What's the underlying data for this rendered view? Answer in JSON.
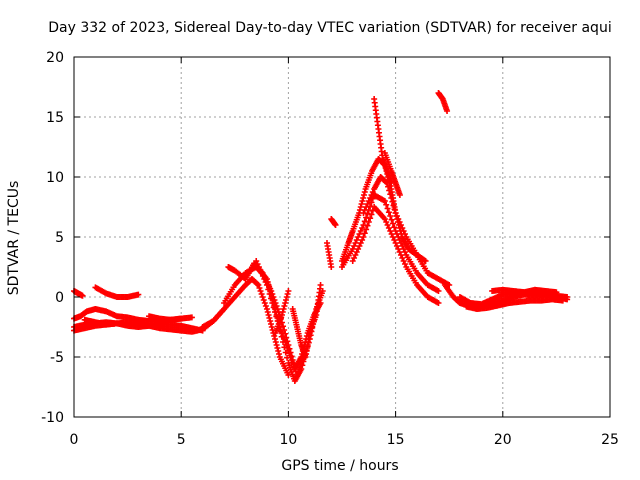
{
  "chart_data": {
    "type": "scatter",
    "title": "Day 332 of 2023, Sidereal Day-to-day VTEC variation (SDTVAR) for receiver aqui",
    "xlabel": "GPS time / hours",
    "ylabel": "SDTVAR / TECUs",
    "xlim": [
      0,
      25
    ],
    "ylim": [
      -10,
      20
    ],
    "xticks": [
      0,
      5,
      10,
      15,
      20,
      25
    ],
    "yticks": [
      -10,
      -5,
      0,
      5,
      10,
      15,
      20
    ],
    "xtick_labels": [
      "0",
      "5",
      "10",
      "15",
      "20",
      "25"
    ],
    "ytick_labels": [
      "-10",
      "-5",
      "0",
      "5",
      "10",
      "15",
      "20"
    ],
    "grid": true,
    "marker": "plus",
    "series": [
      {
        "name": "SDTVAR",
        "color": "#ff0000",
        "tracks": [
          {
            "x": [
              0.0,
              0.5,
              1.0,
              1.5,
              2.0,
              2.5,
              3.0,
              3.5,
              4.0,
              4.5,
              5.0,
              5.5,
              6.0
            ],
            "y": [
              -2.5,
              -2.3,
              -2.2,
              -2.1,
              -2.2,
              -2.4,
              -2.5,
              -2.4,
              -2.3,
              -2.3,
              -2.4,
              -2.6,
              -2.8
            ]
          },
          {
            "x": [
              0.0,
              0.5,
              1.0,
              1.5,
              2.0,
              2.5,
              3.0,
              3.5,
              4.0,
              4.5,
              5.0,
              5.5,
              6.0,
              6.5,
              7.0
            ],
            "y": [
              -2.8,
              -2.6,
              -2.4,
              -2.3,
              -2.2,
              -2.1,
              -2.2,
              -2.4,
              -2.6,
              -2.7,
              -2.8,
              -2.9,
              -2.7,
              -2.0,
              -1.0
            ]
          },
          {
            "x": [
              0.0,
              0.3,
              0.6,
              1.0,
              1.5,
              2.0,
              2.5,
              3.0,
              3.5,
              4.0,
              4.5,
              5.0
            ],
            "y": [
              -1.8,
              -1.6,
              -1.2,
              -1.0,
              -1.2,
              -1.6,
              -1.7,
              -1.9,
              -2.0,
              -2.0,
              -1.9,
              -1.8
            ]
          },
          {
            "x": [
              0.0,
              0.2,
              0.4
            ],
            "y": [
              0.5,
              0.3,
              0.1
            ]
          },
          {
            "x": [
              1.0,
              1.5,
              2.0,
              2.5,
              3.0
            ],
            "y": [
              0.8,
              0.3,
              0.0,
              0.0,
              0.2
            ]
          },
          {
            "x": [
              0.5,
              1.0,
              1.5,
              2.0
            ],
            "y": [
              -1.9,
              -2.1,
              -2.3,
              -2.2
            ]
          },
          {
            "x": [
              3.5,
              4.0,
              4.5,
              5.0,
              5.5
            ],
            "y": [
              -1.6,
              -1.8,
              -1.9,
              -1.8,
              -1.7
            ]
          },
          {
            "x": [
              6.0,
              6.5,
              7.0,
              7.5,
              8.0,
              8.3,
              8.6,
              9.0,
              9.3,
              9.6,
              10.0
            ],
            "y": [
              -2.5,
              -2.0,
              -1.0,
              0.0,
              1.0,
              1.5,
              1.0,
              -1.0,
              -3.0,
              -5.0,
              -6.5
            ]
          },
          {
            "x": [
              7.0,
              7.5,
              8.0,
              8.5,
              9.0,
              9.3,
              9.6,
              10.0,
              10.3,
              10.6,
              10.9,
              11.2,
              11.5
            ],
            "y": [
              -0.5,
              1.0,
              2.0,
              2.5,
              1.5,
              -0.5,
              -2.5,
              -4.5,
              -6.0,
              -5.0,
              -3.0,
              -1.5,
              -0.5
            ]
          },
          {
            "x": [
              7.2,
              7.5,
              8.0,
              8.4,
              8.8,
              9.2,
              9.6,
              10.0,
              10.4,
              10.8
            ],
            "y": [
              2.5,
              2.2,
              1.5,
              2.8,
              2.0,
              0.5,
              -1.5,
              -4.0,
              -6.5,
              -4.5
            ]
          },
          {
            "x": [
              8.5,
              9.0,
              9.5,
              10.0,
              10.3,
              10.6,
              11.0,
              11.3,
              11.6
            ],
            "y": [
              3.0,
              1.0,
              -2.0,
              -5.5,
              -7.0,
              -6.0,
              -3.5,
              -1.0,
              0.5
            ]
          },
          {
            "x": [
              10.2,
              10.4,
              10.6,
              10.8,
              11.0,
              11.3,
              11.5
            ],
            "y": [
              -1.0,
              -2.5,
              -4.0,
              -5.0,
              -3.0,
              -1.5,
              1.0
            ]
          },
          {
            "x": [
              9.4,
              9.7,
              10.0
            ],
            "y": [
              -3.0,
              -1.5,
              0.5
            ]
          },
          {
            "x": [
              12.0,
              12.2
            ],
            "y": [
              6.5,
              6.0
            ]
          },
          {
            "x": [
              11.8,
              12.0
            ],
            "y": [
              4.5,
              2.5
            ]
          },
          {
            "x": [
              12.5,
              12.8,
              13.0,
              13.3,
              13.6,
              13.9,
              14.2,
              14.5,
              14.8,
              15.0,
              15.3,
              15.6,
              16.0,
              16.4
            ],
            "y": [
              3.0,
              4.5,
              5.5,
              7.0,
              9.0,
              10.5,
              11.5,
              11.0,
              9.0,
              7.0,
              5.0,
              4.0,
              3.5,
              3.0
            ]
          },
          {
            "x": [
              12.5,
              13.0,
              13.5,
              14.0,
              14.5,
              15.0,
              15.5,
              16.0,
              16.5,
              17.0
            ],
            "y": [
              2.5,
              4.0,
              6.0,
              8.5,
              8.0,
              5.5,
              3.5,
              2.0,
              1.0,
              0.5
            ]
          },
          {
            "x": [
              13.0,
              13.5,
              14.0,
              14.5,
              15.0,
              15.5,
              16.0,
              16.5,
              17.0
            ],
            "y": [
              3.0,
              5.0,
              7.5,
              6.5,
              4.5,
              2.5,
              1.0,
              0.0,
              -0.5
            ]
          },
          {
            "x": [
              13.5,
              14.0,
              14.3,
              14.6,
              15.0,
              15.5,
              16.0,
              16.5,
              17.0,
              17.5
            ],
            "y": [
              7.0,
              9.0,
              10.0,
              9.5,
              7.0,
              5.0,
              3.5,
              2.0,
              1.5,
              1.0
            ]
          },
          {
            "x": [
              14.0,
              14.2,
              14.4,
              14.6,
              14.8
            ],
            "y": [
              16.5,
              14.0,
              11.5,
              10.5,
              9.5
            ]
          },
          {
            "x": [
              14.5,
              14.8,
              15.0,
              15.2
            ],
            "y": [
              12.0,
              10.5,
              9.5,
              8.5
            ]
          },
          {
            "x": [
              17.0,
              17.2,
              17.4
            ],
            "y": [
              17.0,
              16.5,
              15.5
            ]
          },
          {
            "x": [
              17.3,
              17.7,
              18.0,
              18.5,
              19.0,
              19.5,
              20.0,
              20.5,
              21.0,
              21.5,
              22.0,
              22.5,
              23.0
            ],
            "y": [
              1.0,
              0.0,
              -0.5,
              -0.8,
              -0.8,
              -0.5,
              -0.3,
              0.0,
              0.2,
              0.1,
              0.2,
              0.1,
              0.0
            ]
          },
          {
            "x": [
              18.0,
              18.5,
              19.0,
              19.5,
              20.0,
              20.5,
              21.0,
              21.5,
              22.0,
              22.5,
              23.0
            ],
            "y": [
              0.0,
              -0.5,
              -0.6,
              -0.2,
              0.2,
              0.3,
              0.4,
              0.3,
              0.2,
              0.0,
              -0.2
            ]
          },
          {
            "x": [
              18.3,
              18.8,
              19.3,
              19.8,
              20.3,
              20.8,
              21.3,
              21.8,
              22.3,
              22.8
            ],
            "y": [
              -0.8,
              -1.0,
              -0.9,
              -0.7,
              -0.5,
              -0.4,
              -0.3,
              -0.3,
              -0.2,
              -0.3
            ]
          },
          {
            "x": [
              19.5,
              20.0,
              20.5,
              21.0,
              21.5,
              22.0,
              22.5
            ],
            "y": [
              0.5,
              0.6,
              0.5,
              0.4,
              0.6,
              0.5,
              0.4
            ]
          }
        ]
      }
    ]
  }
}
